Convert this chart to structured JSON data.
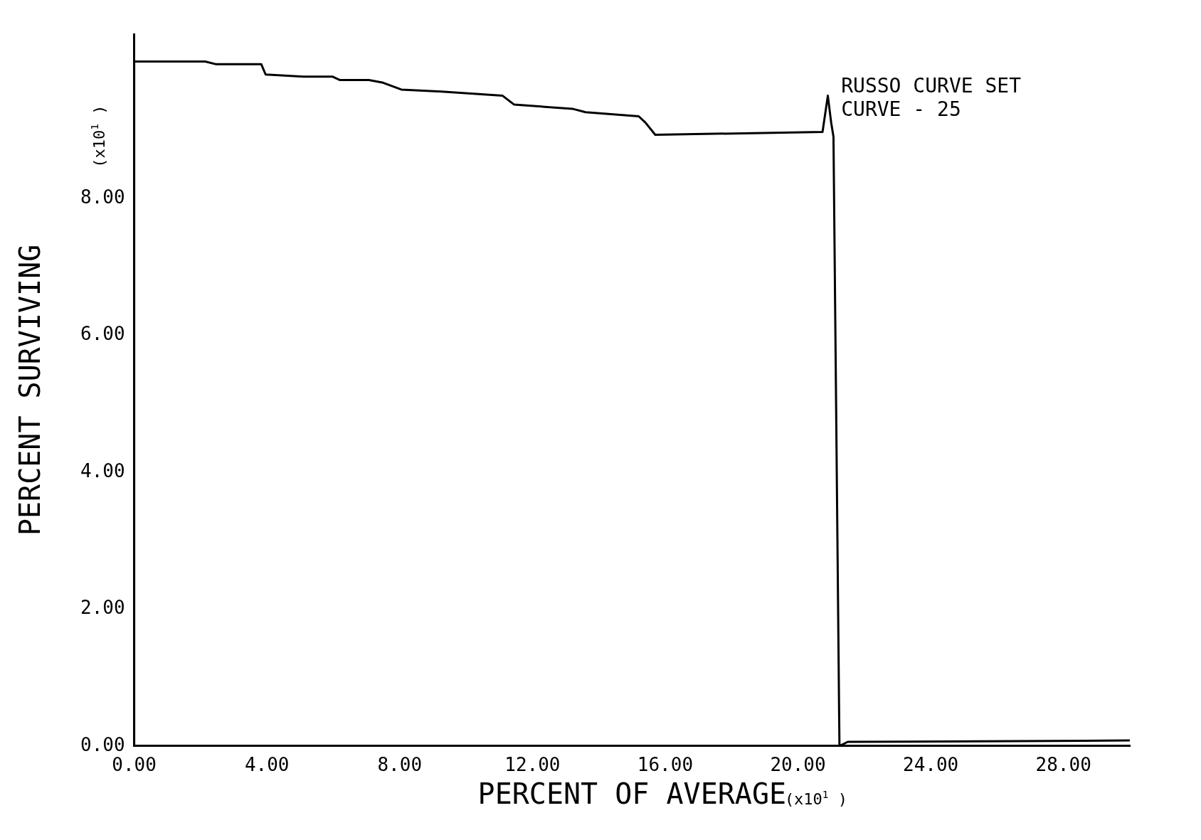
{
  "chart_data": {
    "type": "line",
    "xlabel": "PERCENT OF AVERAGE",
    "ylabel": "PERCENT SURVIVING",
    "annotations": [
      "RUSSO CURVE SET",
      "CURVE - 25",
      "(x10$^{1}$ )",
      "(x10$^{1}$ )"
    ],
    "color": "#000000",
    "marker": "none",
    "line_style": "solid",
    "grid": false,
    "legend": false,
    "x": [
      0,
      0,
      2.14,
      2.47,
      3.83,
      3.96,
      5.1,
      5.97,
      6.19,
      7.07,
      7.5,
      8.05,
      9.26,
      11.1,
      11.45,
      13.2,
      13.6,
      15.2,
      15.4,
      15.7,
      20.74,
      20.9,
      21.0,
      21.07,
      21.25,
      21.5,
      30.0
    ],
    "values": [
      0,
      10.0,
      10.0,
      9.96,
      9.96,
      9.81,
      9.78,
      9.78,
      9.73,
      9.73,
      9.69,
      9.59,
      9.56,
      9.5,
      9.37,
      9.31,
      9.26,
      9.2,
      9.11,
      8.93,
      8.97,
      9.5,
      9.11,
      8.9,
      0,
      0.06,
      0.08
    ],
    "xlim": [
      0,
      30
    ],
    "ylim": [
      0,
      10.4
    ],
    "xticks": [
      {
        "value": 0,
        "label": "0.00"
      },
      {
        "value": 4,
        "label": "4.00"
      },
      {
        "value": 8,
        "label": "8.00"
      },
      {
        "value": 12,
        "label": "12.00"
      },
      {
        "value": 16,
        "label": "16.00"
      },
      {
        "value": 20,
        "label": "20.00"
      },
      {
        "value": 24,
        "label": "24.00"
      },
      {
        "value": 28,
        "label": "28.00"
      }
    ],
    "yticks": [
      {
        "value": 0,
        "label": "0.00"
      },
      {
        "value": 2,
        "label": "2.00"
      },
      {
        "value": 4,
        "label": "4.00"
      },
      {
        "value": 6,
        "label": "6.00"
      },
      {
        "value": 8,
        "label": "8.00"
      }
    ]
  }
}
